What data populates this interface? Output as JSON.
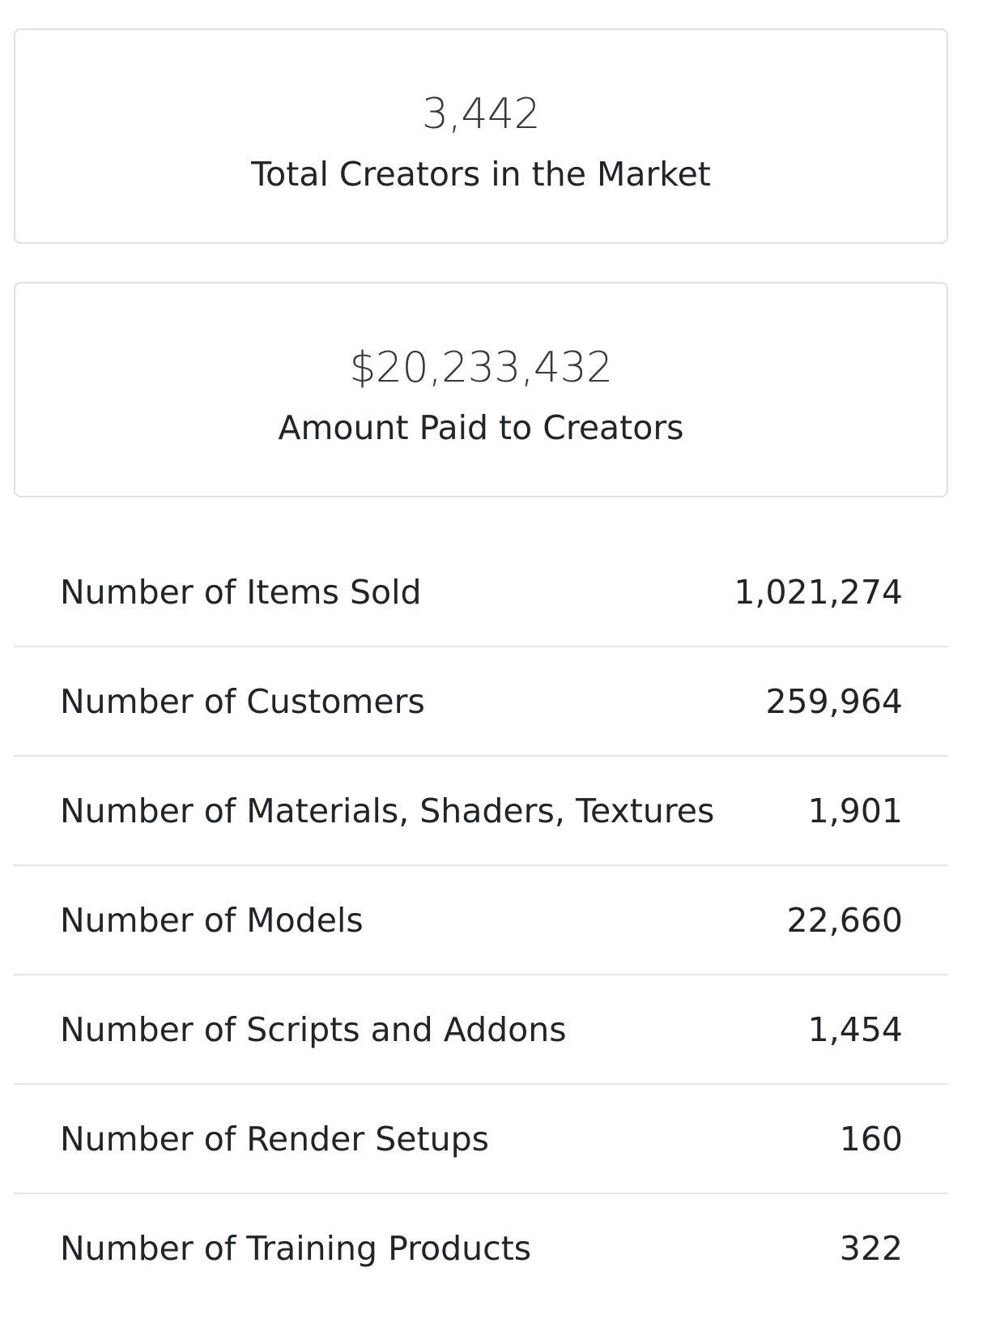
{
  "cards": {
    "creators": {
      "value": "3,442",
      "label": "Total Creators in the Market"
    },
    "paid": {
      "value": "$20,233,432",
      "label": "Amount Paid to Creators"
    }
  },
  "stats": [
    {
      "label": "Number of Items Sold",
      "value": "1,021,274"
    },
    {
      "label": "Number of Customers",
      "value": "259,964"
    },
    {
      "label": "Number of Materials, Shaders, Textures",
      "value": "1,901"
    },
    {
      "label": "Number of Models",
      "value": "22,660"
    },
    {
      "label": "Number of Scripts and Addons",
      "value": "1,454"
    },
    {
      "label": "Number of Render Setups",
      "value": "160"
    },
    {
      "label": "Number of Training Products",
      "value": "322"
    }
  ]
}
